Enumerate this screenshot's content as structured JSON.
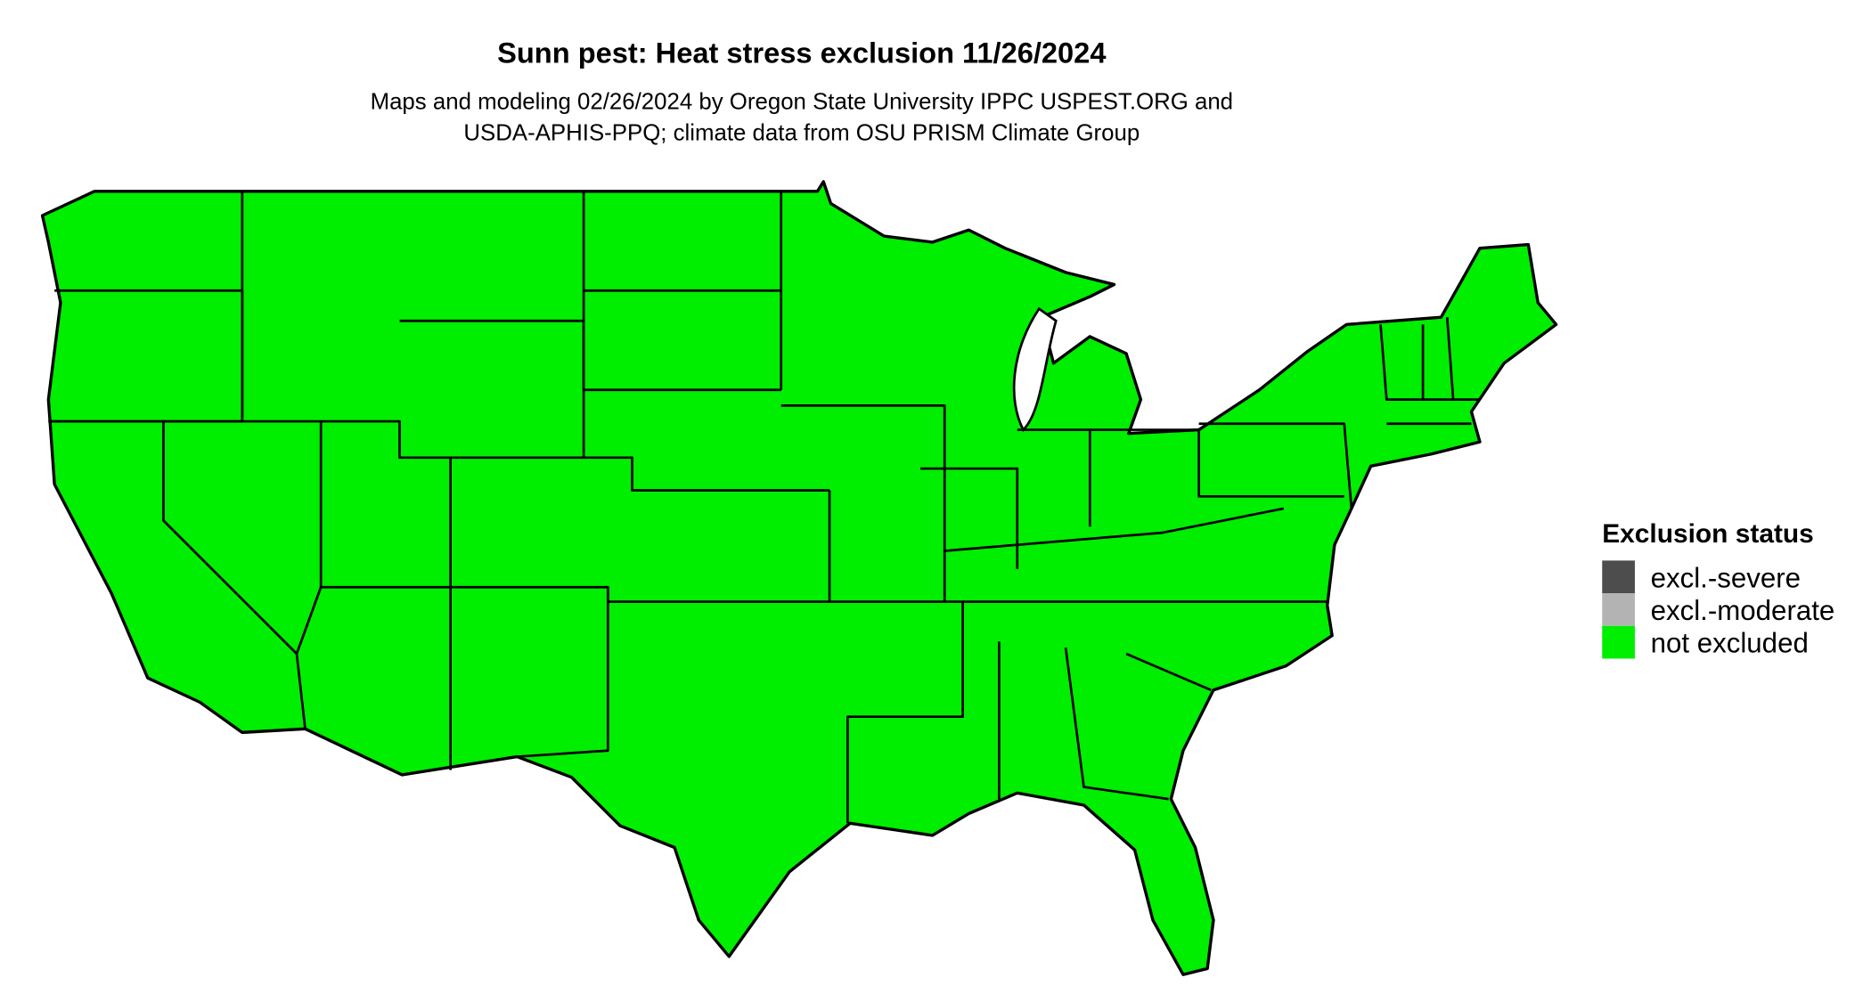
{
  "header": {
    "title": "Sunn pest: Heat stress exclusion 11/26/2024",
    "subtitle": [
      "Maps and modeling 02/26/2024 by Oregon State University IPPC USPEST.ORG and",
      "USDA-APHIS-PPQ; climate data from OSU PRISM Climate Group"
    ]
  },
  "legend": {
    "title": "Exclusion status",
    "items": [
      {
        "label": "excl.-severe",
        "color": "#4d4d4d"
      },
      {
        "label": "excl.-moderate",
        "color": "#b3b3b3"
      },
      {
        "label": "not excluded",
        "color": "#00ee00"
      }
    ]
  }
}
